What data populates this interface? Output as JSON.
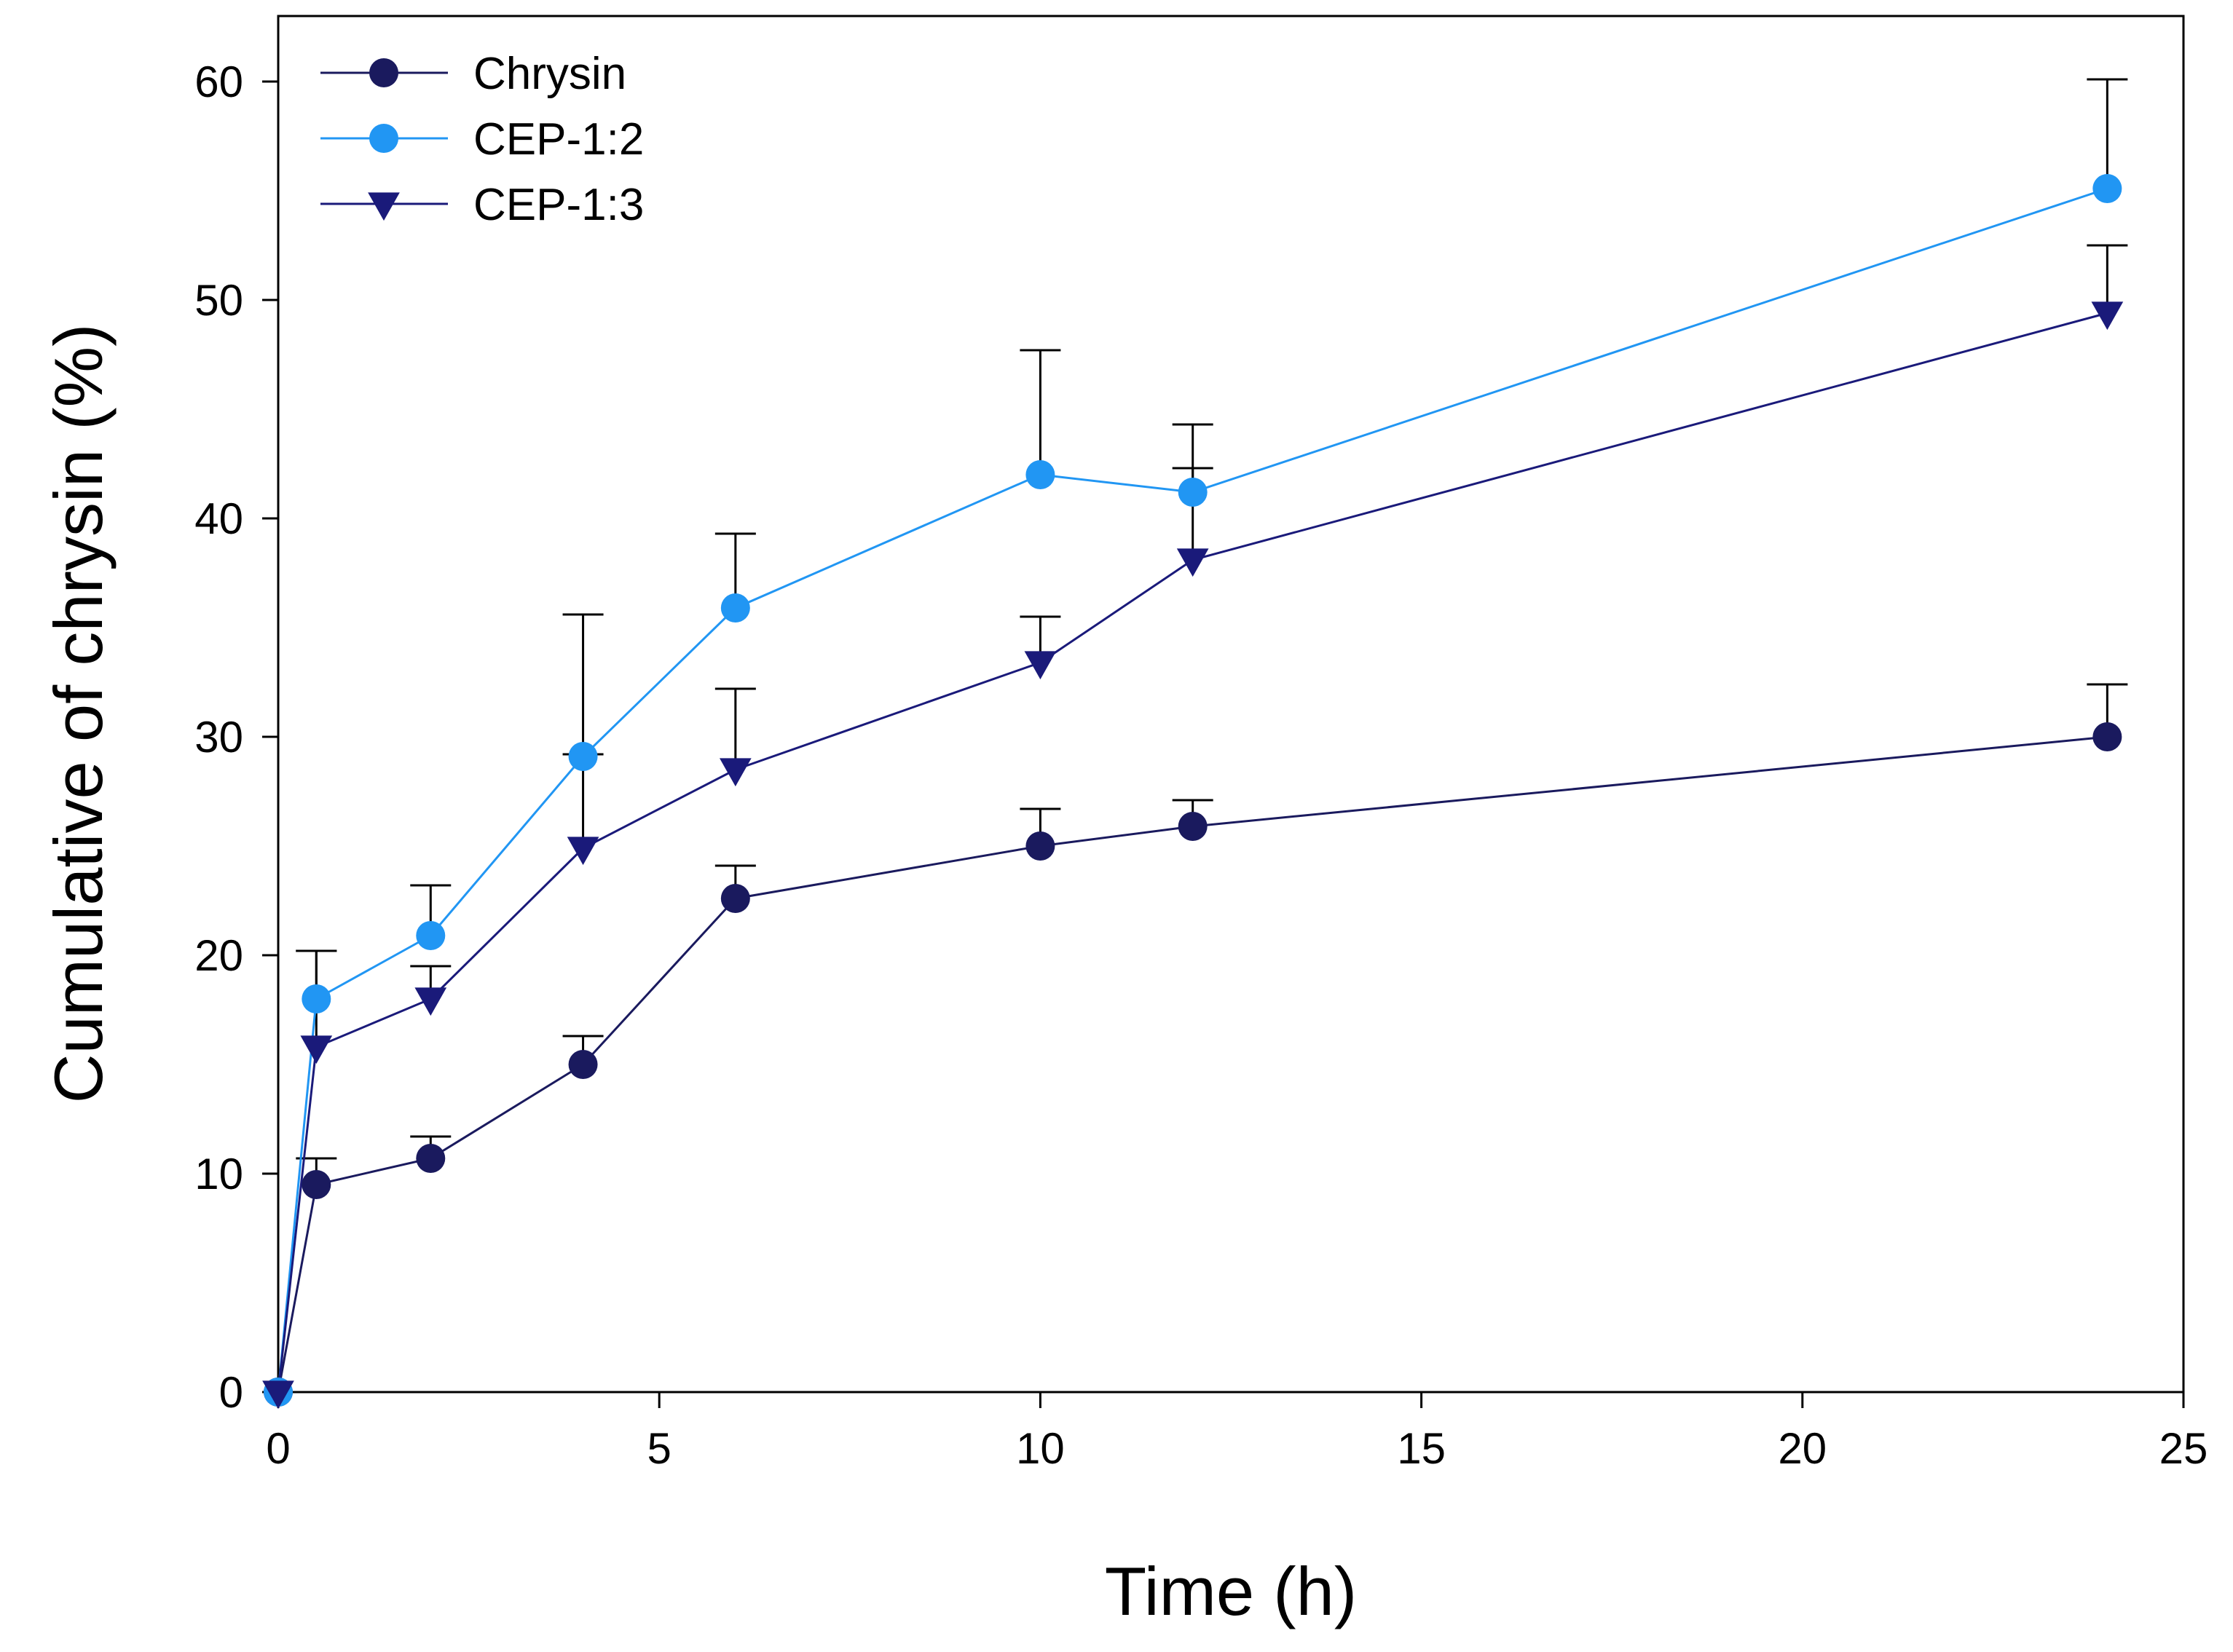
{
  "chart_data": {
    "type": "line",
    "title": "",
    "xlabel": "Time (h)",
    "ylabel": "Cumulative of chrysin (%)",
    "xlim": [
      0,
      25
    ],
    "ylim": [
      0,
      63
    ],
    "xticks": [
      0,
      5,
      10,
      15,
      20,
      25
    ],
    "yticks": [
      0,
      10,
      20,
      30,
      40,
      50,
      60
    ],
    "grid": false,
    "legend_position": "top-left",
    "x": [
      0,
      0.5,
      2,
      4,
      6,
      10,
      12,
      24
    ],
    "series": [
      {
        "name": "Chrysin",
        "marker": "circle",
        "color": "#1a1a5e",
        "values": [
          0,
          9.5,
          10.7,
          15.0,
          22.6,
          25.0,
          25.9,
          30.0
        ],
        "error": [
          0,
          1.2,
          1.0,
          1.3,
          1.5,
          1.7,
          1.2,
          2.4
        ]
      },
      {
        "name": "CEP-1:2",
        "marker": "circle",
        "color": "#2196f3",
        "values": [
          0,
          18.0,
          20.9,
          29.1,
          35.9,
          42.0,
          41.2,
          55.1
        ],
        "error": [
          0,
          2.2,
          2.3,
          6.5,
          3.4,
          5.7,
          3.1,
          5.0
        ]
      },
      {
        "name": "CEP-1:3",
        "marker": "triangle-down",
        "color": "#1a1a7a",
        "values": [
          0,
          15.8,
          18.0,
          24.9,
          28.5,
          33.4,
          38.1,
          49.4
        ],
        "error": [
          0,
          4.4,
          1.5,
          4.3,
          3.7,
          2.1,
          4.2,
          3.1
        ]
      }
    ]
  }
}
